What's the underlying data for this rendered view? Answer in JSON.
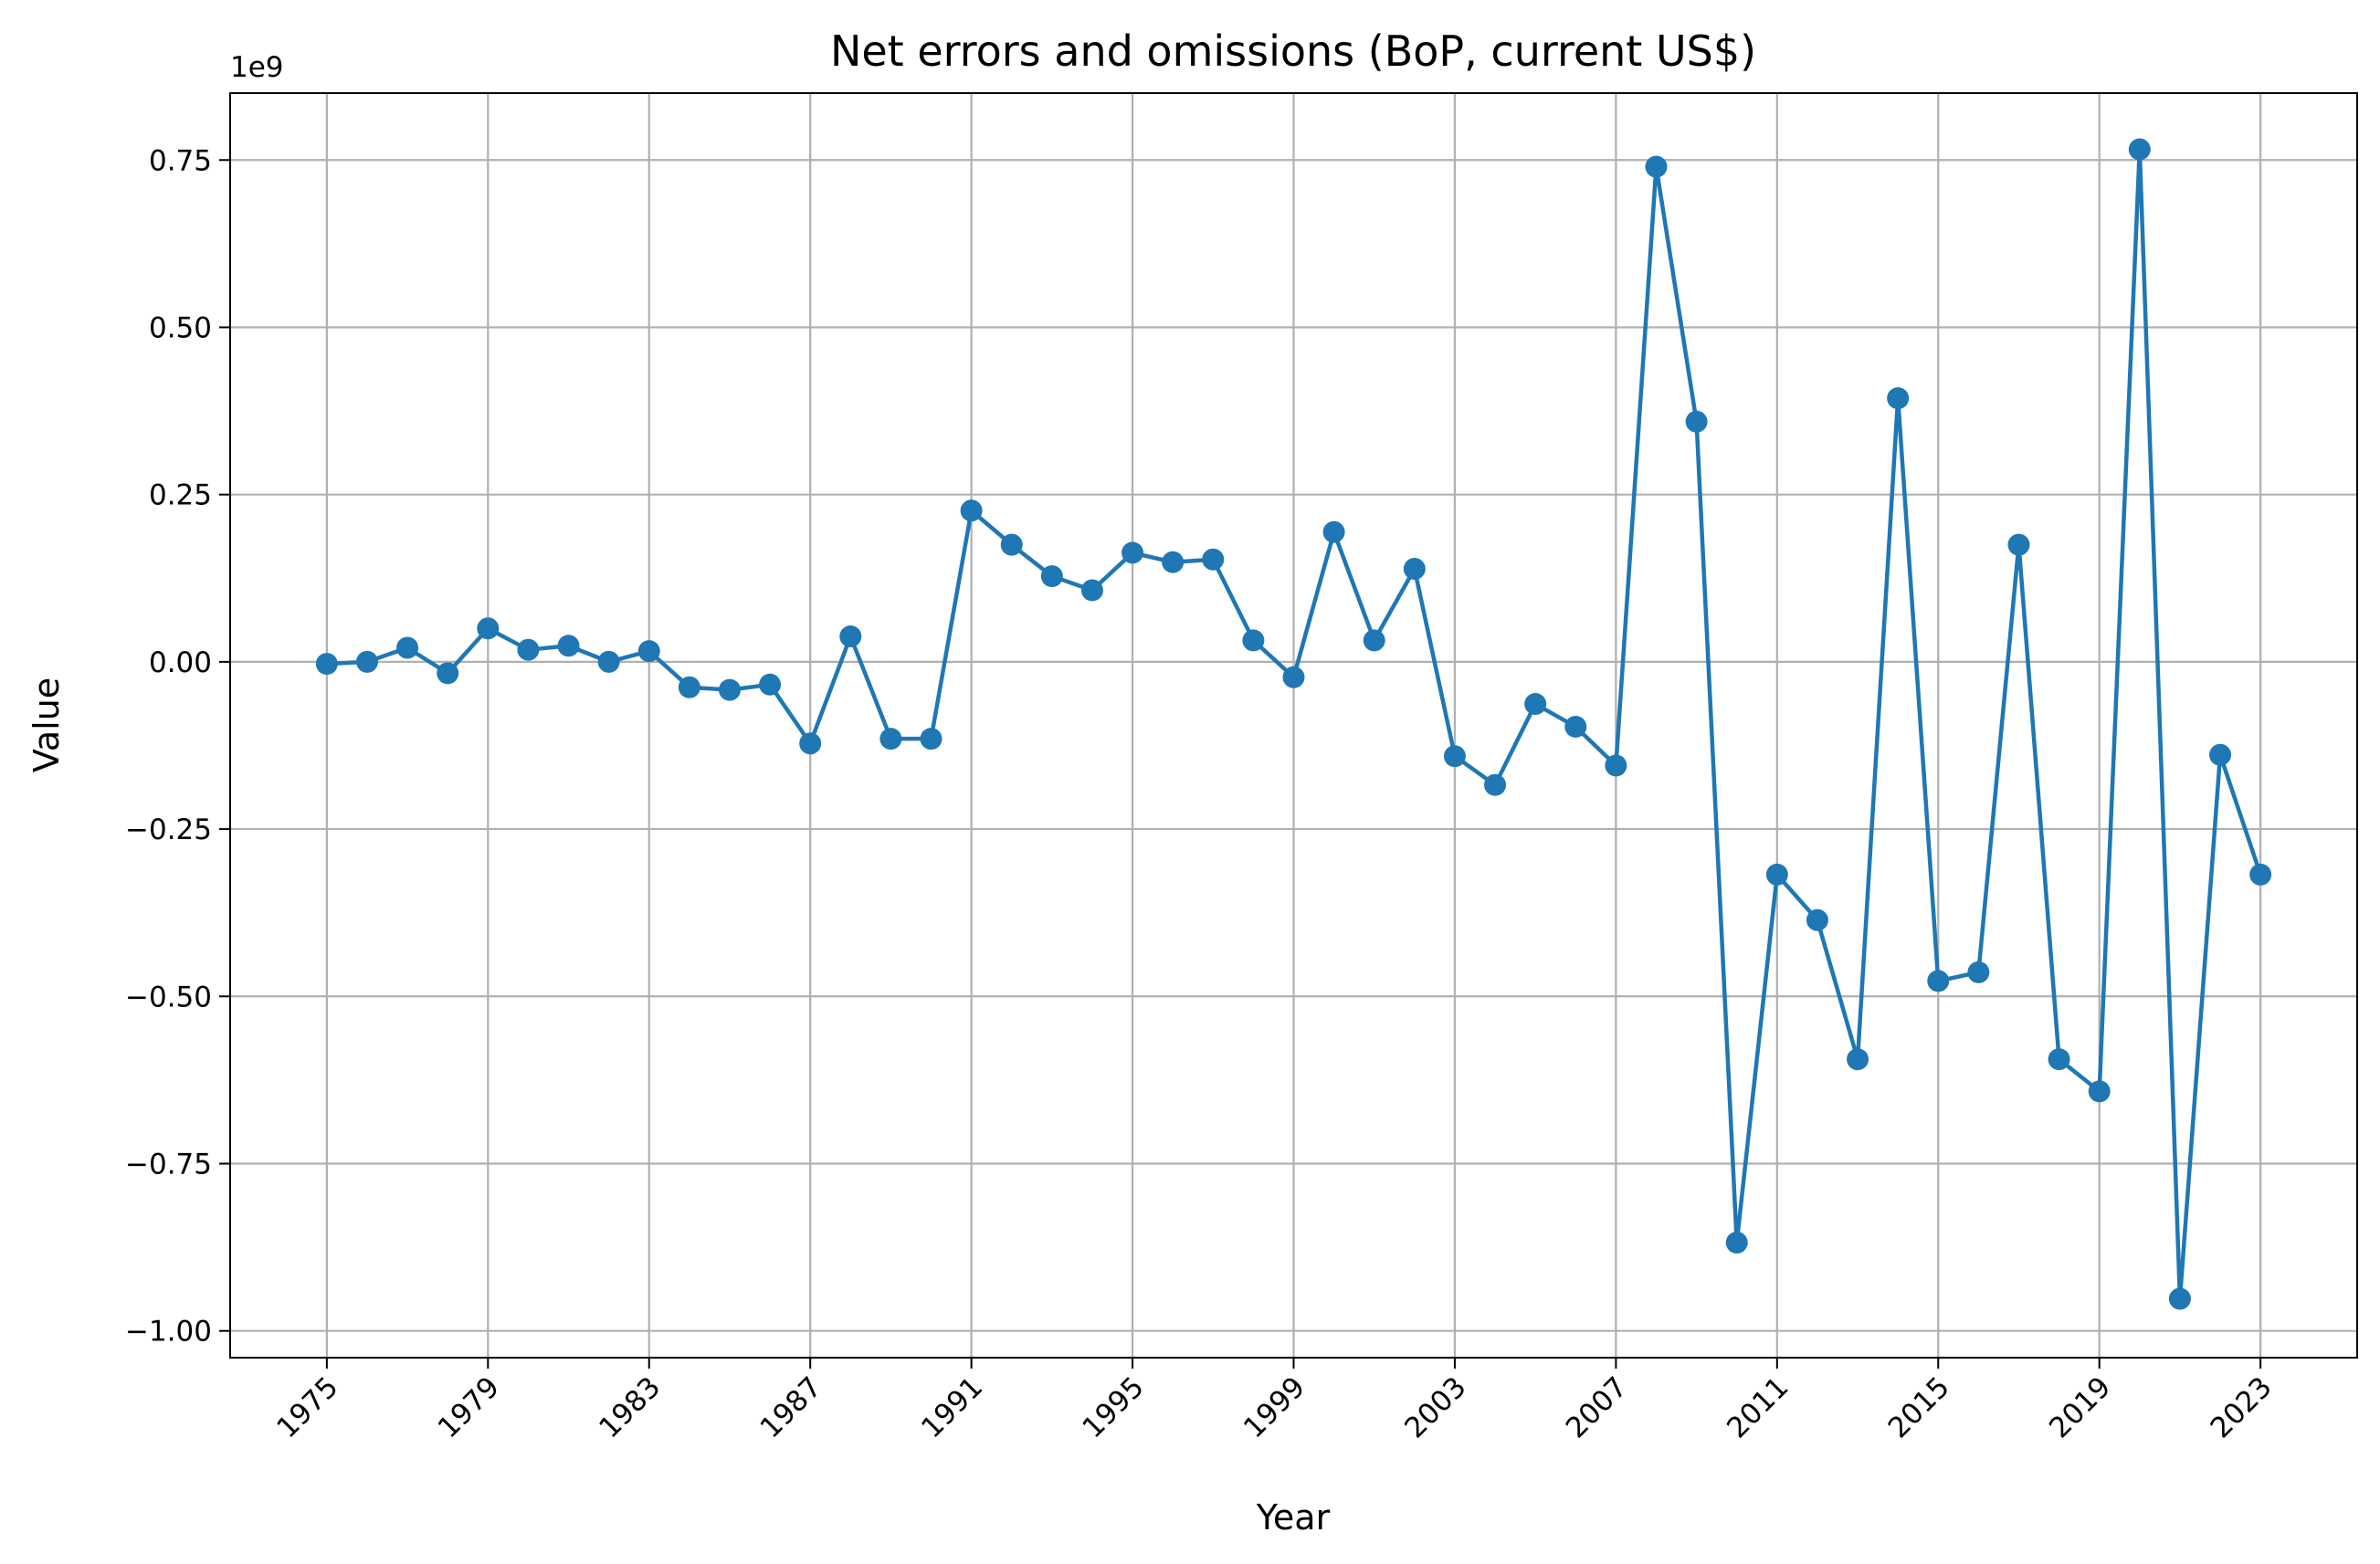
{
  "chart_data": {
    "type": "line",
    "title": "Net errors and omissions (BoP, current US$)",
    "xlabel": "Year",
    "ylabel": "Value",
    "y_offset_label": "1e9",
    "xlim": [
      1972.6,
      2025.4
    ],
    "ylim": [
      -1.04,
      0.85
    ],
    "x_ticks": [
      1975,
      1979,
      1983,
      1987,
      1991,
      1995,
      1999,
      2003,
      2007,
      2011,
      2015,
      2019,
      2023
    ],
    "y_ticks": [
      -1.0,
      -0.75,
      -0.5,
      -0.25,
      0.0,
      0.25,
      0.5,
      0.75
    ],
    "y_tick_labels": [
      "−1.00",
      "−0.75",
      "−0.50",
      "−0.25",
      "0.00",
      "0.25",
      "0.50",
      "0.75"
    ],
    "grid": true,
    "line_color": "#1f77b4",
    "series": [
      {
        "x": [
          1975,
          1976,
          1977,
          1978,
          1979,
          1980,
          1981,
          1982,
          1983,
          1984,
          1985,
          1986,
          1987,
          1988,
          1989,
          1990,
          1991,
          1992,
          1993,
          1994,
          1995,
          1996,
          1997,
          1998,
          1999,
          2000,
          2001,
          2002,
          2003,
          2004,
          2005,
          2006,
          2007,
          2008,
          2009,
          2010,
          2011,
          2012,
          2013,
          2014,
          2015,
          2016,
          2017,
          2018,
          2019,
          2020,
          2021,
          2022,
          2023
        ],
        "values": [
          -0.003,
          0.0,
          0.021,
          -0.017,
          0.05,
          0.018,
          0.024,
          0.0,
          0.016,
          -0.038,
          -0.042,
          -0.034,
          -0.122,
          0.038,
          -0.115,
          -0.115,
          0.226,
          0.175,
          0.128,
          0.107,
          0.163,
          0.149,
          0.153,
          0.032,
          -0.023,
          0.194,
          0.032,
          0.139,
          -0.141,
          -0.184,
          -0.063,
          -0.097,
          -0.155,
          0.74,
          0.359,
          -0.868,
          -0.318,
          -0.386,
          -0.594,
          0.394,
          -0.477,
          -0.464,
          0.175,
          -0.594,
          -0.642,
          0.766,
          -0.952,
          -0.139,
          -0.318
        ]
      }
    ]
  }
}
